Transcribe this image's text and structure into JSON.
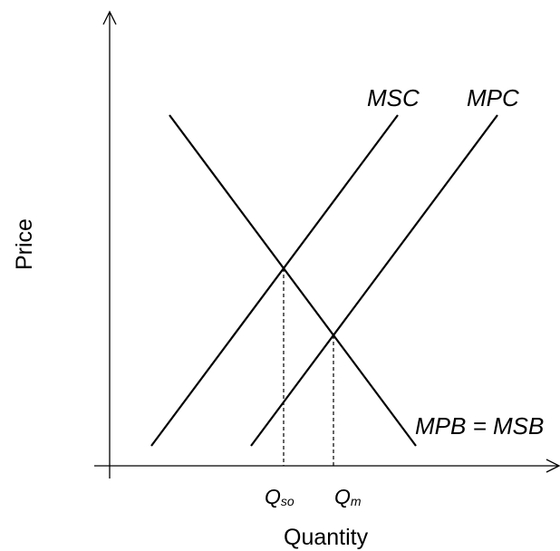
{
  "axes": {
    "x_label": "Quantity",
    "y_label": "Price"
  },
  "curves": {
    "msc_label": "MSC",
    "mpc_label": "MPC",
    "demand_label": "MPB = MSB"
  },
  "quantities": {
    "q_so_main": "Q",
    "q_so_sub": "so",
    "q_m_main": "Q",
    "q_m_sub": "m"
  }
}
